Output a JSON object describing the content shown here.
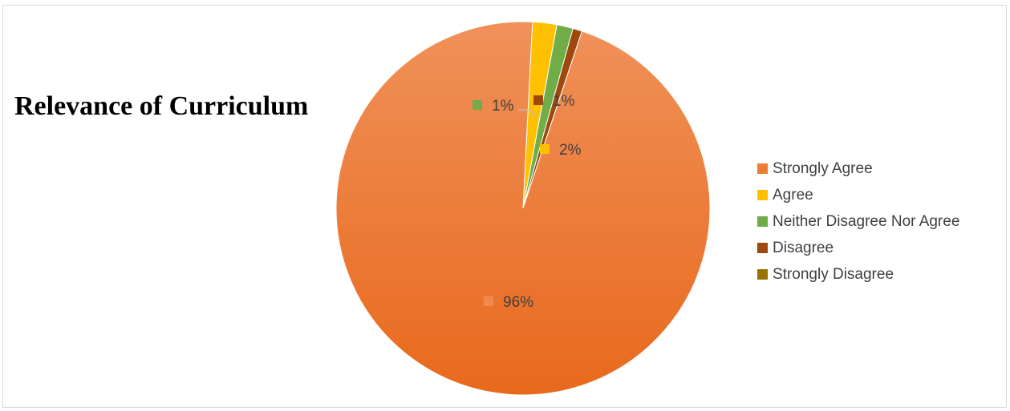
{
  "chart_data": {
    "type": "pie",
    "title": "Relevance of Curriculum",
    "categories": [
      "Strongly Agree",
      "Agree",
      "Neither Disagree Nor Agree",
      "Disagree",
      "Strongly Disagree"
    ],
    "values": [
      96,
      2,
      1,
      1,
      0
    ],
    "data_labels": [
      "96%",
      "2%",
      "1%",
      "1%",
      ""
    ],
    "colors": [
      "#ED7D31",
      "#FFC000",
      "#70AD47",
      "#9E480E",
      "#997300"
    ],
    "legend_position": "right"
  }
}
